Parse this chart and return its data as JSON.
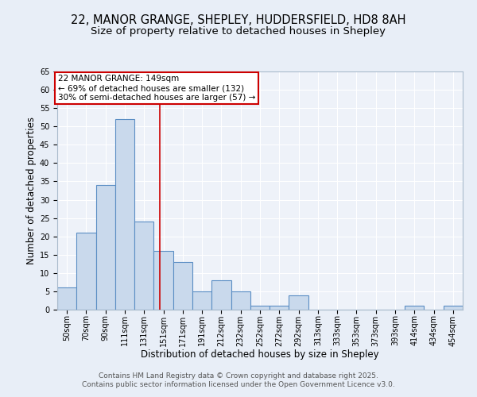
{
  "title_line1": "22, MANOR GRANGE, SHEPLEY, HUDDERSFIELD, HD8 8AH",
  "title_line2": "Size of property relative to detached houses in Shepley",
  "xlabel": "Distribution of detached houses by size in Shepley",
  "ylabel": "Number of detached properties",
  "bar_labels": [
    "50sqm",
    "70sqm",
    "90sqm",
    "111sqm",
    "131sqm",
    "151sqm",
    "171sqm",
    "191sqm",
    "212sqm",
    "232sqm",
    "252sqm",
    "272sqm",
    "292sqm",
    "313sqm",
    "333sqm",
    "353sqm",
    "373sqm",
    "393sqm",
    "414sqm",
    "434sqm",
    "454sqm"
  ],
  "bar_values": [
    6,
    21,
    34,
    52,
    24,
    16,
    13,
    5,
    8,
    5,
    1,
    1,
    4,
    0,
    0,
    0,
    0,
    0,
    1,
    0,
    1
  ],
  "bar_color": "#c9d9ec",
  "bar_edge_color": "#5b8ec4",
  "red_line_x": 4.82,
  "annotation_text": "22 MANOR GRANGE: 149sqm\n← 69% of detached houses are smaller (132)\n30% of semi-detached houses are larger (57) →",
  "annotation_box_color": "#ffffff",
  "annotation_box_edge": "#cc0000",
  "red_line_color": "#cc0000",
  "ylim": [
    0,
    65
  ],
  "yticks": [
    0,
    5,
    10,
    15,
    20,
    25,
    30,
    35,
    40,
    45,
    50,
    55,
    60,
    65
  ],
  "background_color": "#e8eef7",
  "plot_bg_color": "#eef2f9",
  "grid_color": "#ffffff",
  "footer_line1": "Contains HM Land Registry data © Crown copyright and database right 2025.",
  "footer_line2": "Contains public sector information licensed under the Open Government Licence v3.0.",
  "title_fontsize": 10.5,
  "subtitle_fontsize": 9.5,
  "axis_label_fontsize": 8.5,
  "tick_fontsize": 7,
  "annotation_fontsize": 7.5,
  "footer_fontsize": 6.5
}
